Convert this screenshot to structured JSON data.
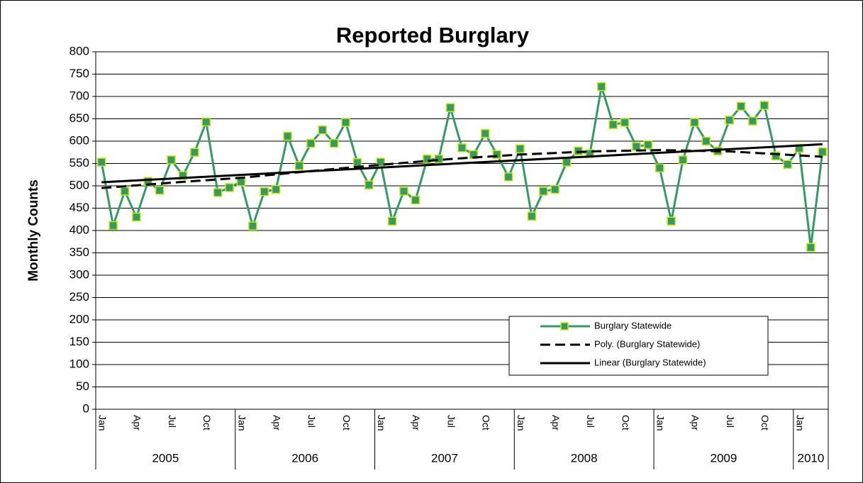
{
  "chart_data": {
    "type": "line",
    "title": "Reported Burglary",
    "y_label": "Monthly Counts",
    "categories": [
      "Jan",
      null,
      null,
      "Apr",
      null,
      null,
      "Jul",
      null,
      null,
      "Oct",
      null,
      null,
      "Jan",
      null,
      null,
      "Apr",
      null,
      null,
      "Jul",
      null,
      null,
      "Oct",
      null,
      null,
      "Jan",
      null,
      null,
      "Apr",
      null,
      null,
      "Jul",
      null,
      null,
      "Oct",
      null,
      null,
      "Jan",
      null,
      null,
      "Apr",
      null,
      null,
      "Jul",
      null,
      null,
      "Oct",
      null,
      null,
      "Jan",
      null,
      null,
      "Apr",
      null,
      null,
      "Jul",
      null,
      null,
      "Oct",
      null,
      null,
      "Jan",
      null,
      null
    ],
    "groups": [
      {
        "label": "2005",
        "span": 12
      },
      {
        "label": "2006",
        "span": 12
      },
      {
        "label": "2007",
        "span": 12
      },
      {
        "label": "2008",
        "span": 12
      },
      {
        "label": "2009",
        "span": 12
      },
      {
        "label": "2010",
        "span": 3
      }
    ],
    "series": [
      {
        "name": "Burglary Statewide",
        "color": "#339966",
        "marker_edge": "#c8e600",
        "values": [
          553,
          411,
          488,
          430,
          510,
          490,
          558,
          523,
          575,
          643,
          485,
          496,
          509,
          410,
          487,
          492,
          611,
          545,
          595,
          625,
          595,
          642,
          552,
          502,
          553,
          421,
          488,
          468,
          560,
          560,
          675,
          585,
          570,
          617,
          570,
          520,
          583,
          432,
          488,
          492,
          553,
          578,
          572,
          722,
          637,
          642,
          588,
          592,
          540,
          421,
          558,
          642,
          600,
          578,
          647,
          678,
          645,
          680,
          567,
          548,
          584,
          362,
          576
        ]
      },
      {
        "name": "Poly. (Burglary Statewide)",
        "color": "#000000",
        "dash": true,
        "x": [
          0,
          6,
          12,
          18,
          24,
          30,
          36,
          42,
          48,
          54,
          60,
          62
        ],
        "values": [
          495,
          507,
          518,
          533,
          547,
          560,
          570,
          577,
          580,
          577,
          568,
          565
        ]
      },
      {
        "name": "Linear (Burglary Statewide)",
        "color": "#000000",
        "x": [
          0,
          62
        ],
        "values": [
          508,
          593
        ]
      }
    ],
    "ylim": [
      0,
      800
    ],
    "yticks": [
      0,
      50,
      100,
      150,
      200,
      250,
      300,
      350,
      400,
      450,
      500,
      550,
      600,
      650,
      700,
      750,
      800
    ],
    "grid": true
  }
}
